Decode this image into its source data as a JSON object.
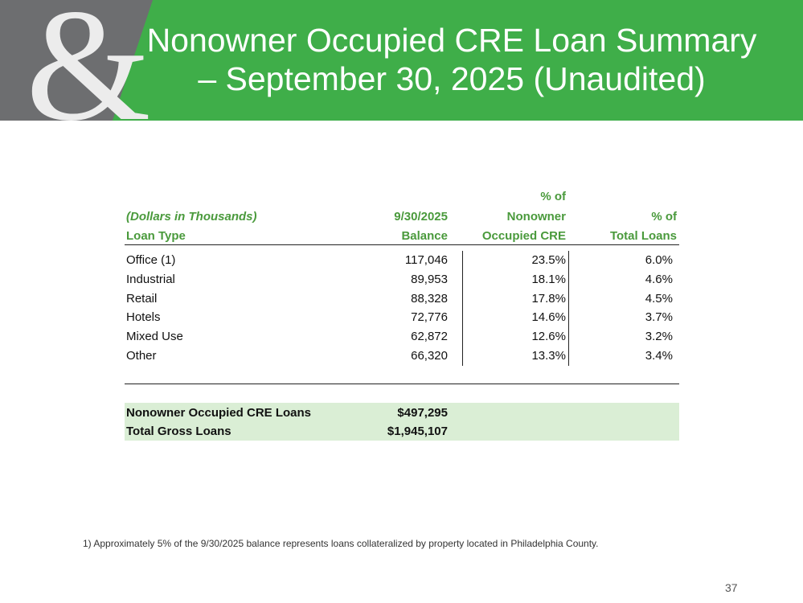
{
  "header": {
    "logo": "&",
    "title_lines": [
      "Nonowner Occupied CRE Loan Summary",
      "– September 30, 2025 (Unaudited)"
    ]
  },
  "table": {
    "columns": [
      {
        "lines": [
          "(Dollars in Thousands)",
          "Loan Type"
        ]
      },
      {
        "lines": [
          "9/30/2025",
          "Balance"
        ]
      },
      {
        "lines": [
          "% of",
          "Nonowner",
          "Occupied CRE"
        ]
      },
      {
        "lines": [
          "% of",
          "Total Loans"
        ]
      }
    ],
    "rows": [
      [
        "Office (1)",
        "117,046",
        "23.5%",
        "6.0%"
      ],
      [
        "Industrial",
        "89,953",
        "18.1%",
        "4.6%"
      ],
      [
        "Retail",
        "88,328",
        "17.8%",
        "4.5%"
      ],
      [
        "Hotels",
        "72,776",
        "14.6%",
        "3.7%"
      ],
      [
        "Mixed Use",
        "62,872",
        "12.6%",
        "3.2%"
      ],
      [
        "Other",
        "66,320",
        "13.3%",
        "3.4%"
      ]
    ],
    "totals": [
      [
        "Nonowner Occupied CRE Loans",
        "$497,295"
      ],
      [
        "Total Gross Loans",
        "$1,945,107"
      ]
    ]
  },
  "footnote": "1) Approximately 5% of the 9/30/2025 balance represents loans collateralized by property located in Philadelphia County.",
  "page_number": "37"
}
